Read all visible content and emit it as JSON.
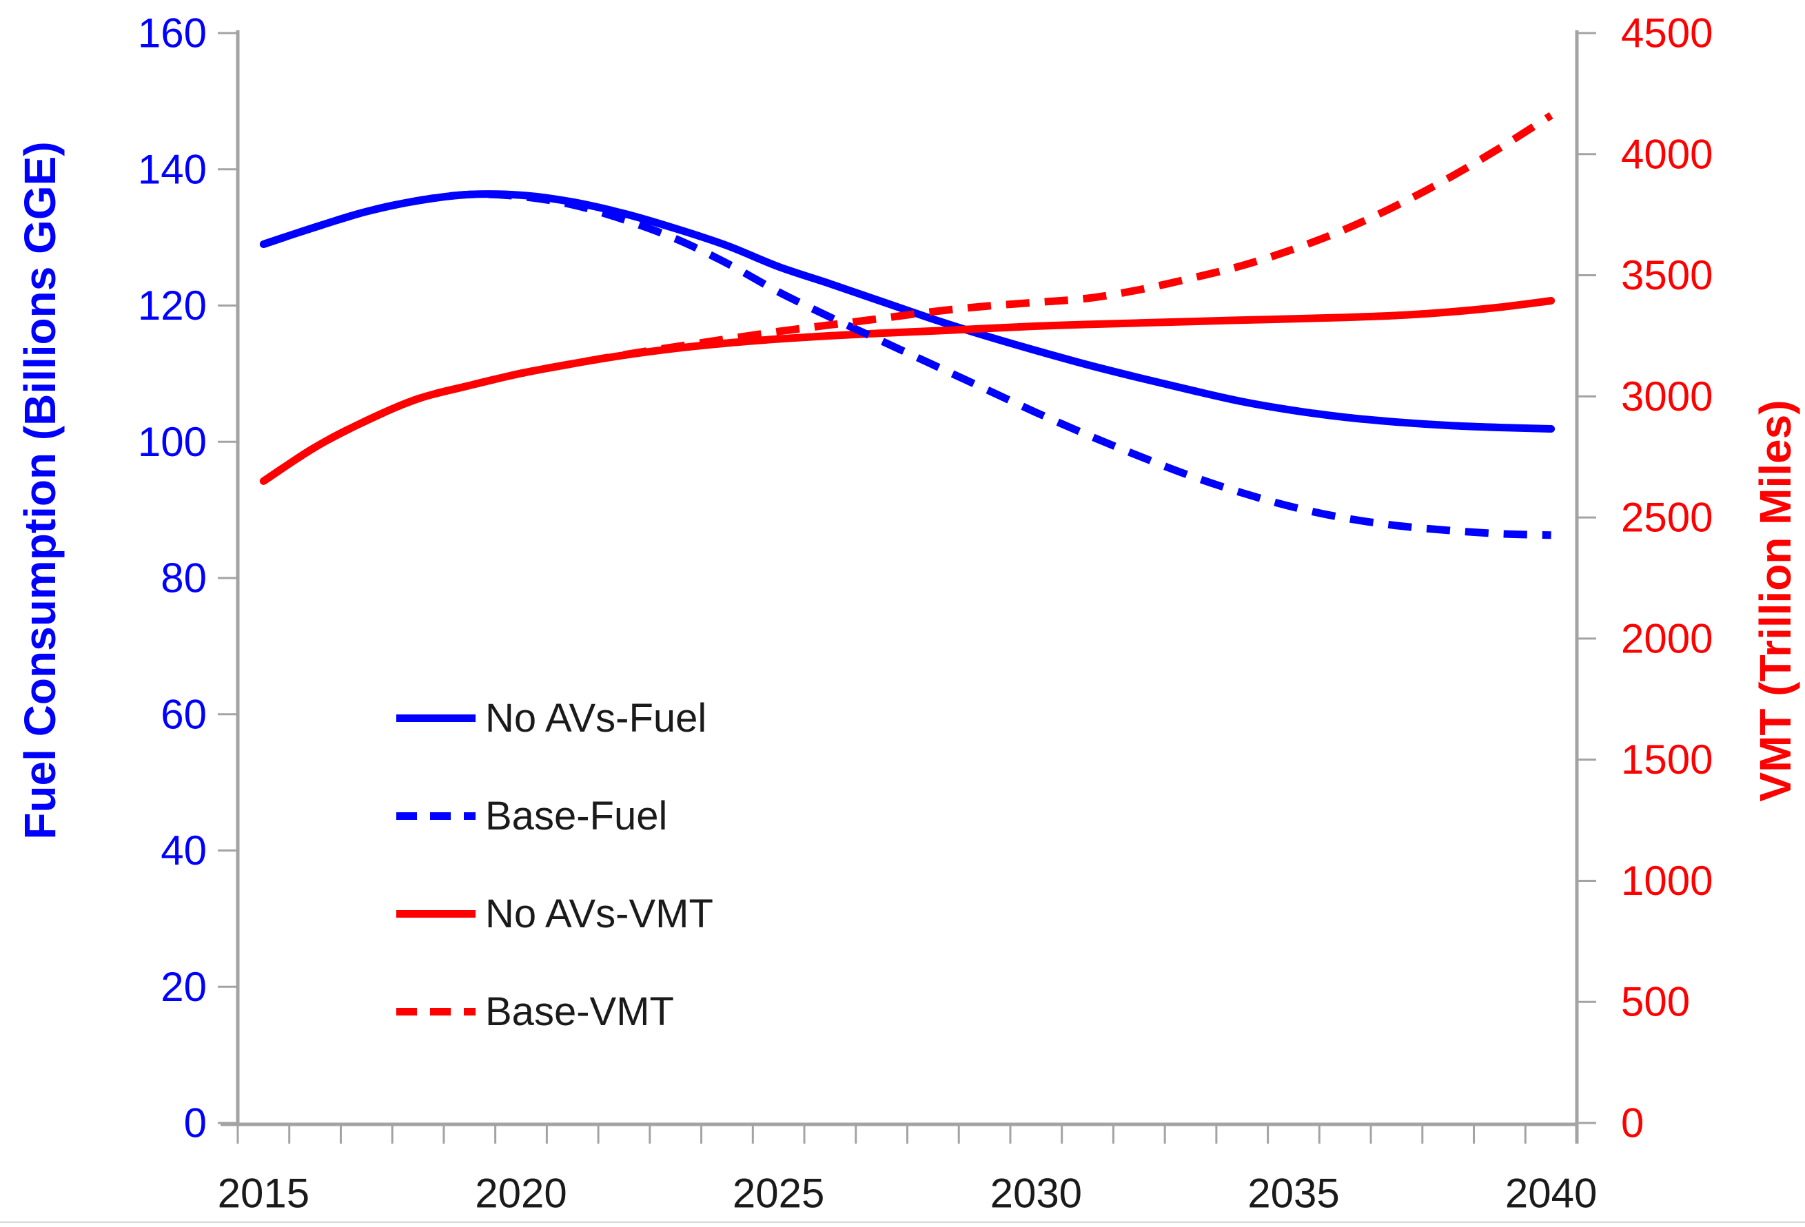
{
  "chart_data": {
    "type": "line",
    "title": "",
    "x": [
      2015,
      2016,
      2017,
      2018,
      2019,
      2020,
      2021,
      2022,
      2023,
      2024,
      2025,
      2026,
      2027,
      2028,
      2029,
      2030,
      2031,
      2032,
      2033,
      2034,
      2035,
      2036,
      2037,
      2038,
      2039,
      2040
    ],
    "x_tick_labels": [
      "2015",
      "2020",
      "2025",
      "2030",
      "2035",
      "2040"
    ],
    "left_axis": {
      "label": "Fuel Consumption (Billions GGE)",
      "color": "#0000fe",
      "min": 0,
      "max": 160,
      "step": 20,
      "tick_labels": [
        "0",
        "20",
        "40",
        "60",
        "80",
        "100",
        "120",
        "140",
        "160"
      ]
    },
    "right_axis": {
      "label": "VMT (Trillion Miles)",
      "color": "#fe0000",
      "min": 0,
      "max": 4500,
      "step": 500,
      "tick_labels": [
        "0",
        "500",
        "1000",
        "1500",
        "2000",
        "2500",
        "3000",
        "3500",
        "4000",
        "4500"
      ]
    },
    "series": [
      {
        "name": "No AVs-Fuel",
        "axis": "left",
        "color": "#0000fe",
        "style": "solid",
        "values": [
          129.0,
          131.5,
          133.8,
          135.4,
          136.3,
          136.2,
          135.2,
          133.5,
          131.3,
          128.8,
          125.7,
          123.2,
          120.6,
          118.0,
          115.6,
          113.4,
          111.3,
          109.4,
          107.6,
          105.9,
          104.6,
          103.6,
          102.9,
          102.4,
          102.1,
          101.9
        ]
      },
      {
        "name": "Base-Fuel",
        "axis": "left",
        "color": "#0000fe",
        "style": "dashed",
        "values": [
          129.0,
          131.5,
          133.8,
          135.4,
          136.3,
          136.0,
          134.8,
          132.6,
          129.8,
          126.2,
          122.0,
          118.3,
          114.8,
          111.3,
          107.8,
          104.3,
          101.0,
          97.9,
          95.0,
          92.5,
          90.4,
          88.8,
          87.7,
          87.0,
          86.5,
          86.3
        ]
      },
      {
        "name": "No AVs-VMT",
        "axis": "right",
        "color": "#fe0000",
        "style": "solid",
        "values": [
          2650,
          2790,
          2900,
          2990,
          3045,
          3095,
          3135,
          3170,
          3198,
          3220,
          3237,
          3250,
          3261,
          3270,
          3280,
          3290,
          3297,
          3303,
          3309,
          3315,
          3320,
          3326,
          3334,
          3348,
          3368,
          3395
        ]
      },
      {
        "name": "Base-VMT",
        "axis": "right",
        "color": "#fe0000",
        "style": "dashed",
        "values": [
          2650,
          2790,
          2900,
          2990,
          3045,
          3095,
          3135,
          3172,
          3205,
          3237,
          3268,
          3295,
          3322,
          3350,
          3372,
          3388,
          3405,
          3440,
          3487,
          3540,
          3608,
          3690,
          3788,
          3900,
          4025,
          4160
        ]
      }
    ],
    "legend_position": "inside-left-lower",
    "grid": false
  },
  "colors": {
    "axis_line": "#a3a3a3",
    "x_label": "#1a1a1a",
    "background": "#ffffff",
    "bottom_rule": "#d9d9d9"
  }
}
